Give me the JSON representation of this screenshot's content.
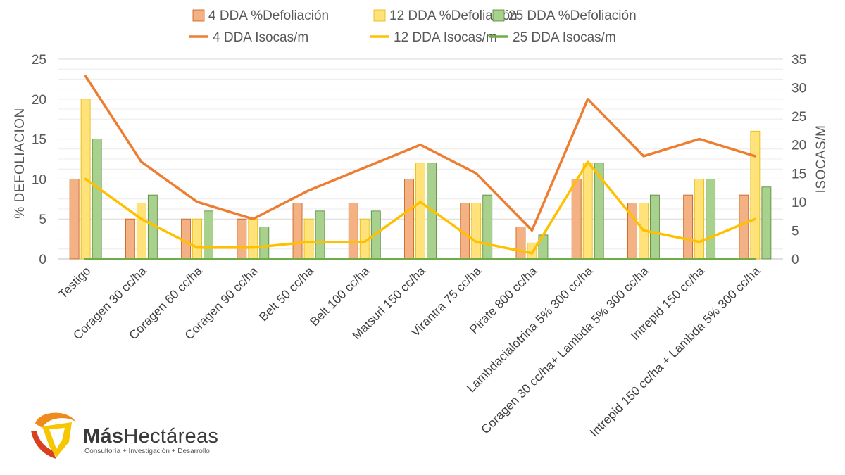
{
  "chart_data": {
    "type": "bar",
    "title": "",
    "ylabel": "% DEFOLIACION",
    "y2label": "ISOCAS/M",
    "ylim": [
      0,
      25
    ],
    "y2lim": [
      0,
      35
    ],
    "yticks": [
      "0",
      "5",
      "10",
      "15",
      "20",
      "25"
    ],
    "y2ticks": [
      "0",
      "5",
      "10",
      "15",
      "20",
      "25",
      "30",
      "35"
    ],
    "categories": [
      "Testigo",
      "Coragen 30 cc/ha",
      "Coragen 60 cc/ha",
      "Coragen 90 cc/ha",
      "Belt 50 cc/ha",
      "Belt 100 cc/ha",
      "Matsuri 150 cc/ha",
      "Virantra 75 cc/ha",
      "Pirate 800 cc/ha",
      "Lambdacialotrina 5% 300 cc/ha",
      "Coragen 30 cc/ha+ Lambda 5% 300 cc/ha",
      "Intrepid 150 cc/ha",
      "Intrepid 150 cc/ha + Lambda 5% 300 cc/ha"
    ],
    "series": [
      {
        "name": "4 DDA %Defoliación",
        "kind": "bar",
        "axis": "left",
        "color": "#F4B183",
        "stroke": "#C55A11",
        "values": [
          10,
          5,
          5,
          5,
          7,
          7,
          10,
          7,
          4,
          10,
          7,
          8,
          8
        ]
      },
      {
        "name": "12 DDA %Defoliación",
        "kind": "bar",
        "axis": "left",
        "color": "#FFE27A",
        "stroke": "#E5B800",
        "values": [
          20,
          7,
          5,
          5,
          5,
          5,
          12,
          7,
          2,
          12,
          7,
          10,
          16
        ]
      },
      {
        "name": "25 DDA %Defoliación",
        "kind": "bar",
        "axis": "left",
        "color": "#A9D18E",
        "stroke": "#548235",
        "values": [
          15,
          8,
          6,
          4,
          6,
          6,
          12,
          8,
          3,
          12,
          8,
          10,
          9
        ]
      },
      {
        "name": "4 DDA Isocas/m",
        "kind": "line",
        "axis": "right",
        "color": "#ED7D31",
        "values": [
          32,
          17,
          10,
          7,
          12,
          16,
          20,
          15,
          5,
          28,
          18,
          21,
          18
        ]
      },
      {
        "name": "12 DDA Isocas/m",
        "kind": "line",
        "axis": "right",
        "color": "#FFC000",
        "values": [
          14,
          7,
          2,
          2,
          3,
          3,
          10,
          3,
          1,
          17,
          5,
          3,
          7
        ]
      },
      {
        "name": "25 DDA Isocas/m",
        "kind": "line",
        "axis": "right",
        "color": "#70AD47",
        "values": [
          0,
          0,
          0,
          0,
          0,
          0,
          0,
          0,
          0,
          0,
          0,
          0,
          0
        ]
      }
    ]
  },
  "logo": {
    "name_bold": "Más",
    "name_rest": "Hectáreas",
    "tagline": "Consultoría + Investigación + Desarrollo",
    "color_orange": "#F08A1C",
    "color_yellow": "#F7C600",
    "color_red": "#D9411E"
  }
}
